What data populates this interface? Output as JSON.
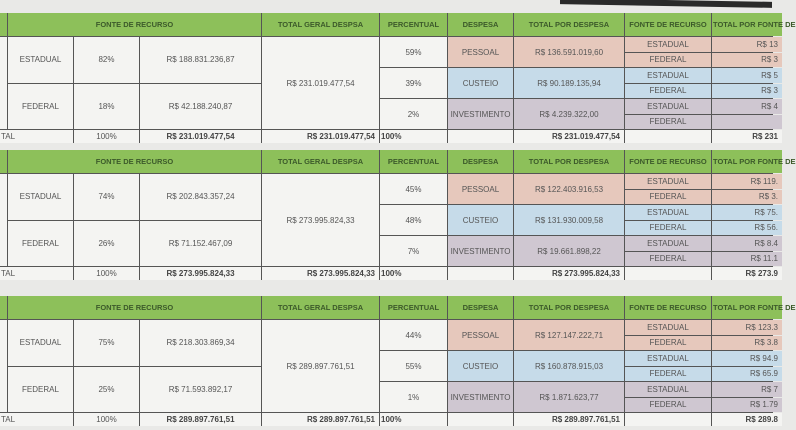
{
  "headers": {
    "fonte_recurso": "FONTE DE RECURSO",
    "total_geral": "TOTAL GERAL DESPSA",
    "percentual": "PERCENTUAL",
    "despesa": "DESPESA",
    "total_por_despesa": "TOTAL POR DESPESA",
    "fonte_recurso_2": "FONTE DE RECURSO",
    "total_por_fonte": "TOTAL POR FONTE DE"
  },
  "colors": {
    "header": "#8dc05a",
    "pessoal": "#e6c8bc",
    "custeio": "#c6dbe9",
    "investimento": "#cfc7d1"
  },
  "total_label": "TAL",
  "blocks": [
    {
      "sources": [
        {
          "name": "ESTADUAL",
          "pct": "82%",
          "value": "R$ 188.831.236,87"
        },
        {
          "name": "FEDERAL",
          "pct": "18%",
          "value": "R$ 42.188.240,87"
        }
      ],
      "total_geral": "R$ 231.019.477,54",
      "expenses": [
        {
          "pct": "59%",
          "name": "PESSOAL",
          "total": "R$ 136.591.019,60",
          "by_source": [
            {
              "source": "ESTADUAL",
              "value": "R$ 13"
            },
            {
              "source": "FEDERAL",
              "value": "R$ 3"
            }
          ]
        },
        {
          "pct": "39%",
          "name": "CUSTEIO",
          "total": "R$ 90.189.135,94",
          "by_source": [
            {
              "source": "ESTADUAL",
              "value": "R$ 5"
            },
            {
              "source": "FEDERAL",
              "value": "R$ 3"
            }
          ]
        },
        {
          "pct": "2%",
          "name": "INVESTIMENTO",
          "total": "R$ 4.239.322,00",
          "by_source": [
            {
              "source": "ESTADUAL",
              "value": "R$ 4"
            },
            {
              "source": "FEDERAL",
              "value": ""
            }
          ]
        }
      ],
      "totals": {
        "pct": "100%",
        "fontes": "R$ 231.019.477,54",
        "geral": "R$ 231.019.477,54",
        "percentual": "100%",
        "despesa": "R$ 231.019.477,54",
        "por_fonte": "R$ 231"
      }
    },
    {
      "sources": [
        {
          "name": "ESTADUAL",
          "pct": "74%",
          "value": "R$ 202.843.357,24"
        },
        {
          "name": "FEDERAL",
          "pct": "26%",
          "value": "R$ 71.152.467,09"
        }
      ],
      "total_geral": "R$ 273.995.824,33",
      "expenses": [
        {
          "pct": "45%",
          "name": "PESSOAL",
          "total": "R$ 122.403.916,53",
          "by_source": [
            {
              "source": "ESTADUAL",
              "value": "R$ 119."
            },
            {
              "source": "FEDERAL",
              "value": "R$ 3."
            }
          ]
        },
        {
          "pct": "48%",
          "name": "CUSTEIO",
          "total": "R$ 131.930.009,58",
          "by_source": [
            {
              "source": "ESTADUAL",
              "value": "R$ 75."
            },
            {
              "source": "FEDERAL",
              "value": "R$ 56."
            }
          ]
        },
        {
          "pct": "7%",
          "name": "INVESTIMENTO",
          "total": "R$ 19.661.898,22",
          "by_source": [
            {
              "source": "ESTADUAL",
              "value": "R$ 8.4"
            },
            {
              "source": "FEDERAL",
              "value": "R$ 11.1"
            }
          ]
        }
      ],
      "totals": {
        "pct": "100%",
        "fontes": "R$ 273.995.824,33",
        "geral": "R$ 273.995.824,33",
        "percentual": "100%",
        "despesa": "R$ 273.995.824,33",
        "por_fonte": "R$ 273.9"
      }
    },
    {
      "sources": [
        {
          "name": "ESTADUAL",
          "pct": "75%",
          "value": "R$ 218.303.869,34"
        },
        {
          "name": "FEDERAL",
          "pct": "25%",
          "value": "R$ 71.593.892,17"
        }
      ],
      "total_geral": "R$ 289.897.761,51",
      "expenses": [
        {
          "pct": "44%",
          "name": "PESSOAL",
          "total": "R$ 127.147.222,71",
          "by_source": [
            {
              "source": "ESTADUAL",
              "value": "R$ 123.3"
            },
            {
              "source": "FEDERAL",
              "value": "R$ 3.8"
            }
          ]
        },
        {
          "pct": "55%",
          "name": "CUSTEIO",
          "total": "R$ 160.878.915,03",
          "by_source": [
            {
              "source": "ESTADUAL",
              "value": "R$ 94.9"
            },
            {
              "source": "FEDERAL",
              "value": "R$ 65.9"
            }
          ]
        },
        {
          "pct": "1%",
          "name": "INVESTIMENTO",
          "total": "R$ 1.871.623,77",
          "by_source": [
            {
              "source": "ESTADUAL",
              "value": "R$ 7"
            },
            {
              "source": "FEDERAL",
              "value": "R$ 1.79"
            }
          ]
        }
      ],
      "totals": {
        "pct": "100%",
        "fontes": "R$ 289.897.761,51",
        "geral": "R$ 289.897.761,51",
        "percentual": "100%",
        "despesa": "R$ 289.897.761,51",
        "por_fonte": "R$ 289.8"
      }
    }
  ]
}
